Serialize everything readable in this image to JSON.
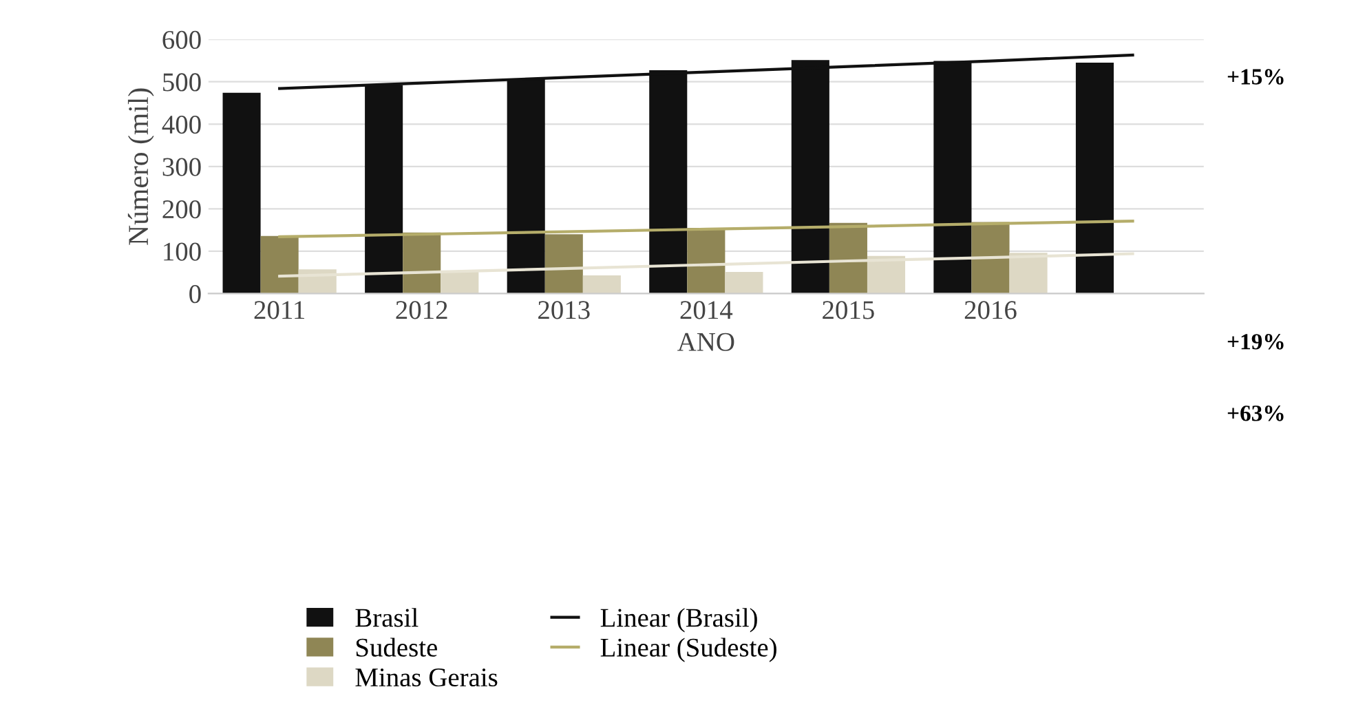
{
  "chart_data": {
    "type": "bar",
    "xlabel": "ANO",
    "ylabel": "Número (mil)",
    "categories": [
      "2011",
      "2012",
      "2013",
      "2014",
      "2015",
      "2016",
      null
    ],
    "series": [
      {
        "name": "Brasil",
        "color": "#111111",
        "values": [
          474,
          492,
          506,
          527,
          551,
          549,
          545
        ]
      },
      {
        "name": "Sudeste",
        "color": "#8f8655",
        "values": [
          136,
          144,
          140,
          155,
          167,
          169,
          null
        ]
      },
      {
        "name": "Minas Gerais",
        "color": "#ddd8c4",
        "values": [
          57,
          51,
          43,
          51,
          89,
          96,
          null
        ]
      },
      {
        "name": "Linear (Brasil)",
        "type": "line",
        "color": "#111111",
        "values": [
          484,
          497,
          510,
          523,
          536,
          549,
          563
        ]
      },
      {
        "name": "Linear (Sudeste)",
        "type": "line",
        "color": "#b5ad6a",
        "values": [
          134,
          140,
          146,
          152,
          158,
          165,
          171
        ]
      },
      {
        "type": "line",
        "color": "#e8e4d4",
        "values": [
          41,
          50,
          59,
          68,
          77,
          85,
          94
        ]
      }
    ],
    "ylim": [
      0,
      600
    ],
    "yticks": [
      0,
      100,
      200,
      300,
      400,
      500,
      600
    ],
    "grid": "y",
    "legend": "bottom left",
    "annotations": [
      "+15%",
      "+19%",
      "+63%"
    ]
  }
}
